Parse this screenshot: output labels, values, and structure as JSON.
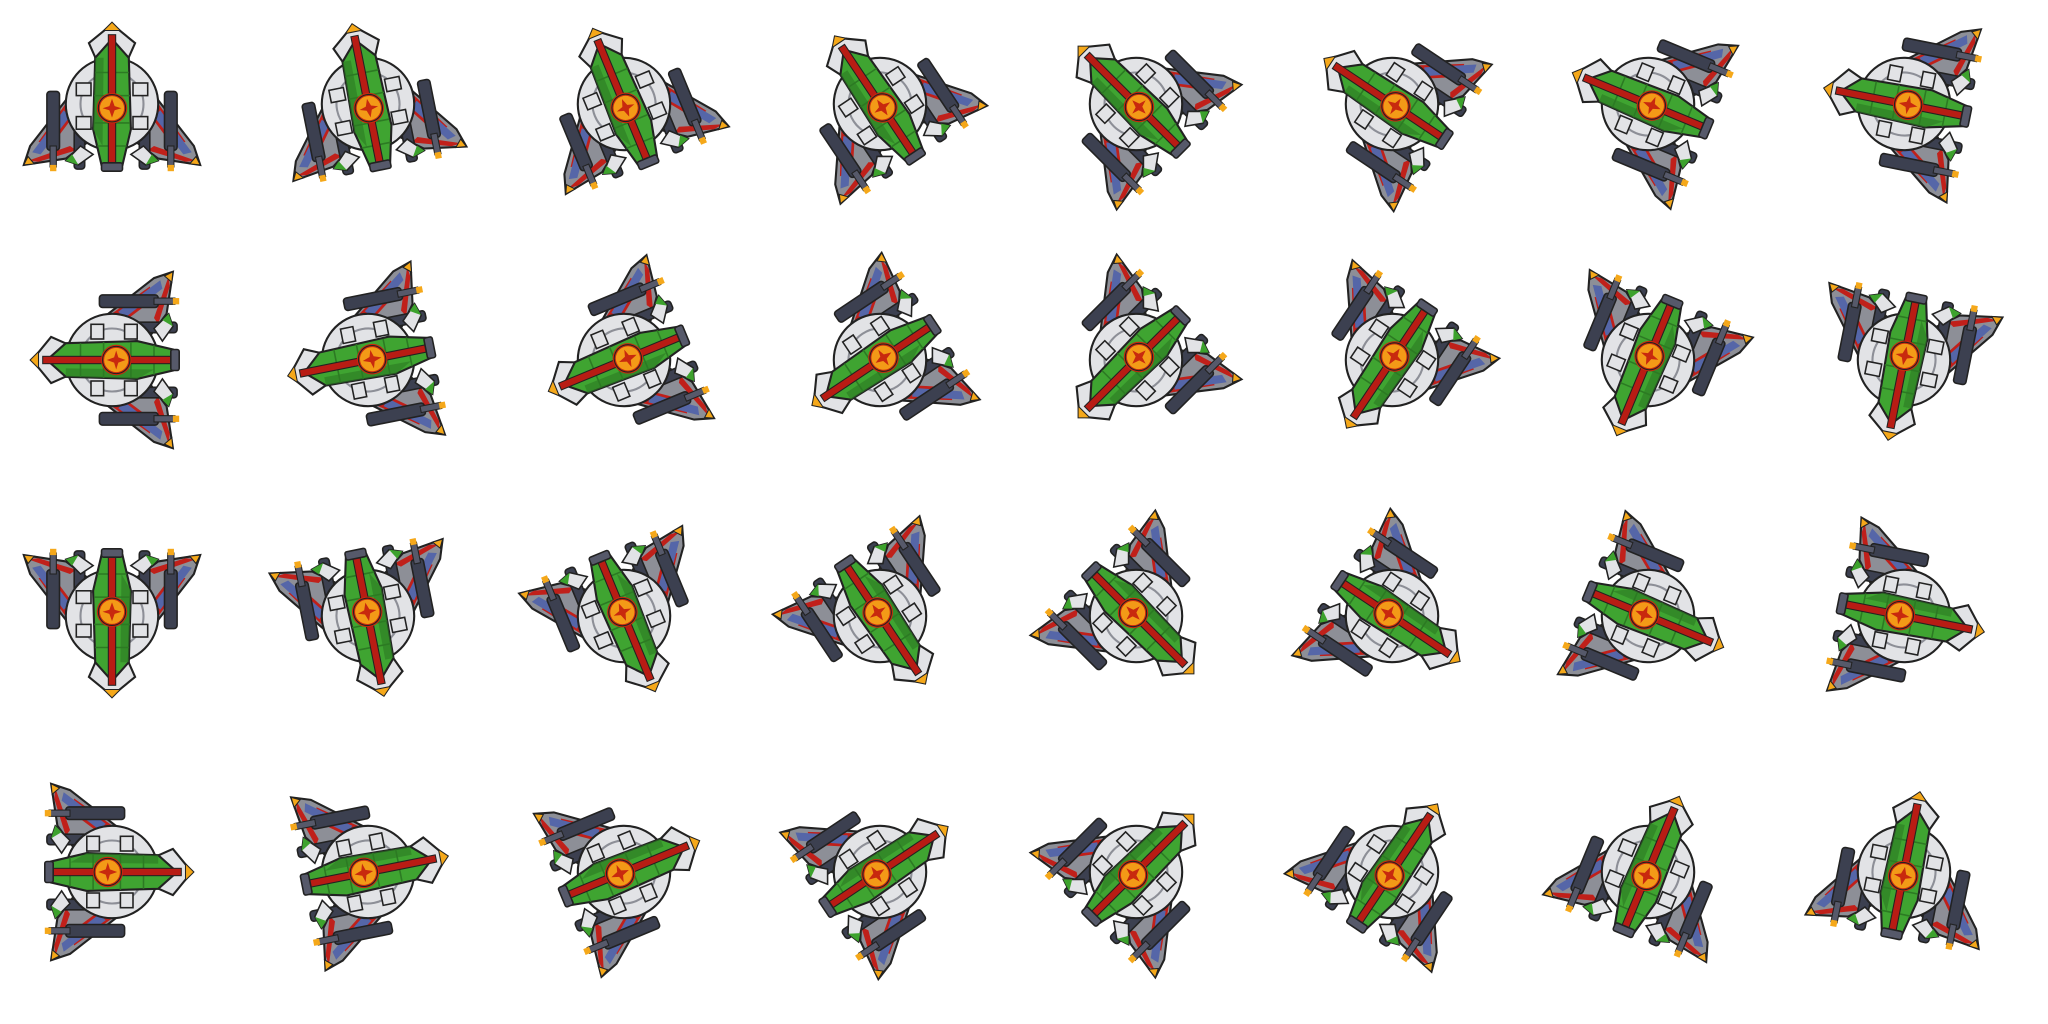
{
  "sprite_sheet": {
    "rows": 4,
    "columns": 8,
    "frame_count": 32,
    "rotation_start_deg": 0,
    "rotation_step_deg": 11.25,
    "rotation_direction": "counter-clockwise"
  },
  "ship": {
    "name_icon": "starfighter-sprite",
    "colors": {
      "hull_grey": "#8d8f97",
      "hull_dark": "#56596a",
      "hull_light": "#e2e3e6",
      "stripe_red": "#c0201a",
      "stripe_blue": "#5566a8",
      "canopy_green": "#3fa431",
      "canopy_dark": "#2c7a23",
      "spine_red": "#b81c14",
      "emblem_orange": "#f39a17",
      "emblem_ring": "#c8290e",
      "tip_orange": "#f5a81a",
      "tip_yellow": "#ffd43a",
      "tip_green": "#3da22d",
      "gun_dark": "#3c4050",
      "outline": "#222222"
    }
  }
}
